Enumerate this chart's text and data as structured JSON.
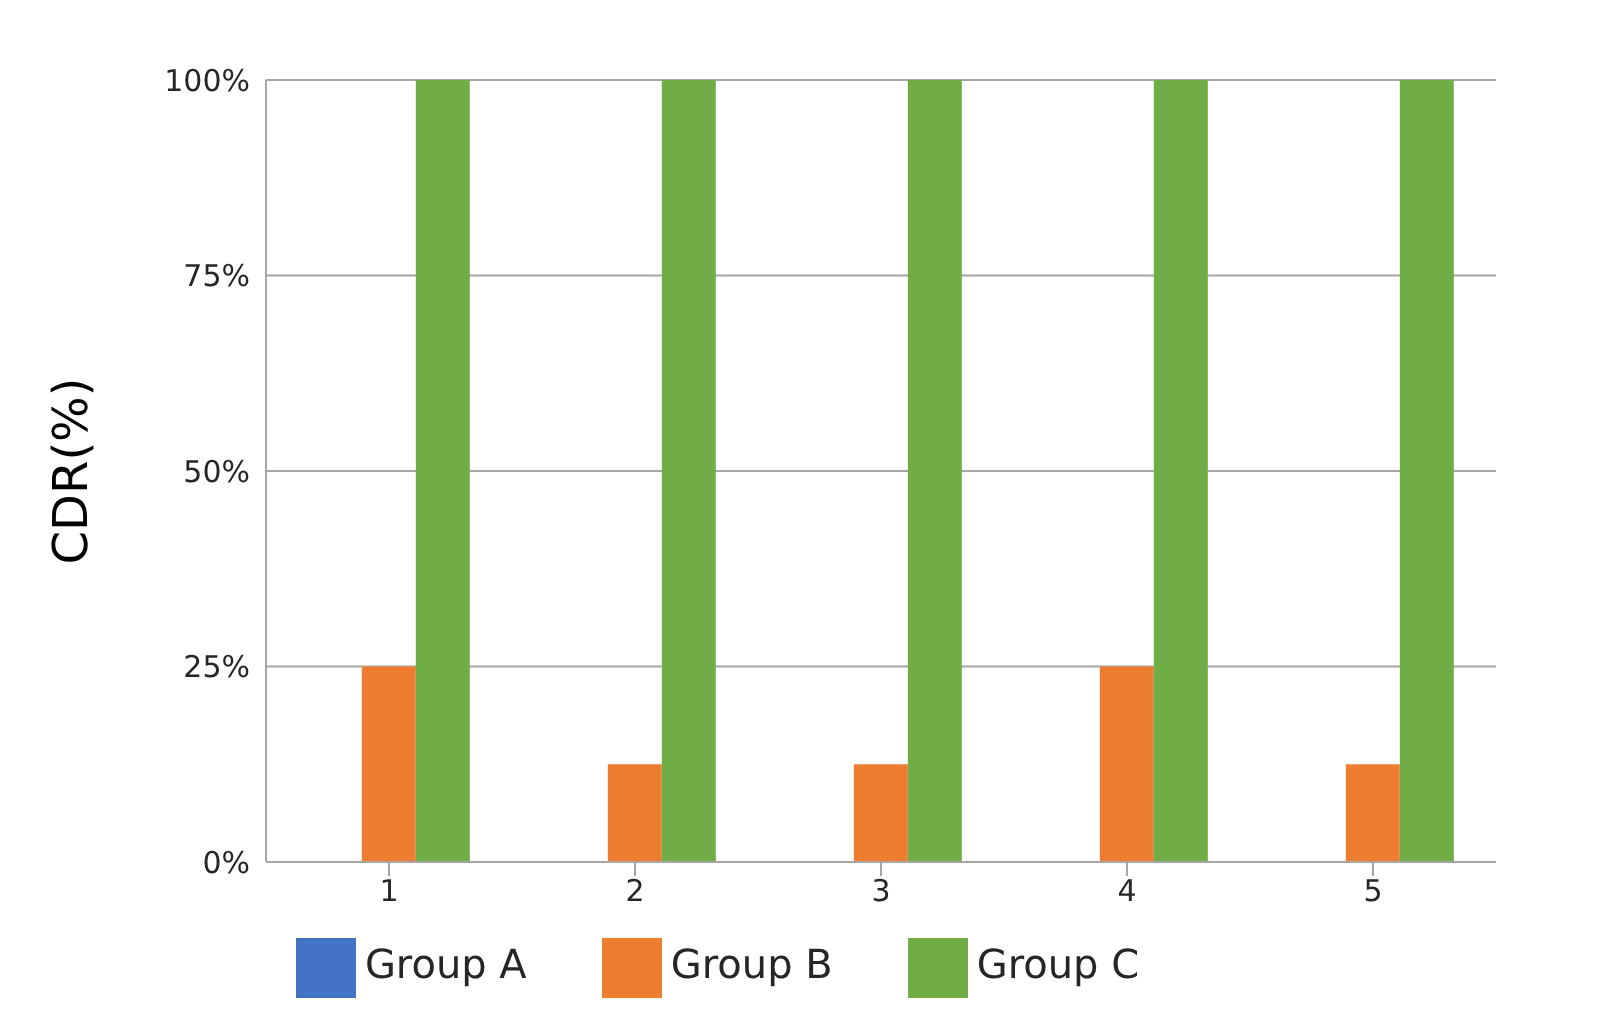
{
  "chart_data": {
    "type": "bar",
    "ylabel": "CDR(%)",
    "categories": [
      "1",
      "2",
      "3",
      "4",
      "5"
    ],
    "series": [
      {
        "name": "Group A",
        "color": "#4472c4",
        "values": [
          0,
          0,
          0,
          0,
          0
        ]
      },
      {
        "name": "Group B",
        "color": "#ed7d31",
        "values": [
          25,
          12.5,
          12.5,
          25,
          12.5
        ]
      },
      {
        "name": "Group C",
        "color": "#70ad47",
        "values": [
          100,
          100,
          100,
          100,
          100
        ]
      }
    ],
    "ylim": [
      0,
      100
    ],
    "yticks": [
      {
        "value": 0,
        "label": "0%"
      },
      {
        "value": 25,
        "label": "25%"
      },
      {
        "value": 50,
        "label": "50%"
      },
      {
        "value": 75,
        "label": "75%"
      },
      {
        "value": 100,
        "label": "100%"
      }
    ],
    "grid": "y",
    "legend": "bottom"
  }
}
